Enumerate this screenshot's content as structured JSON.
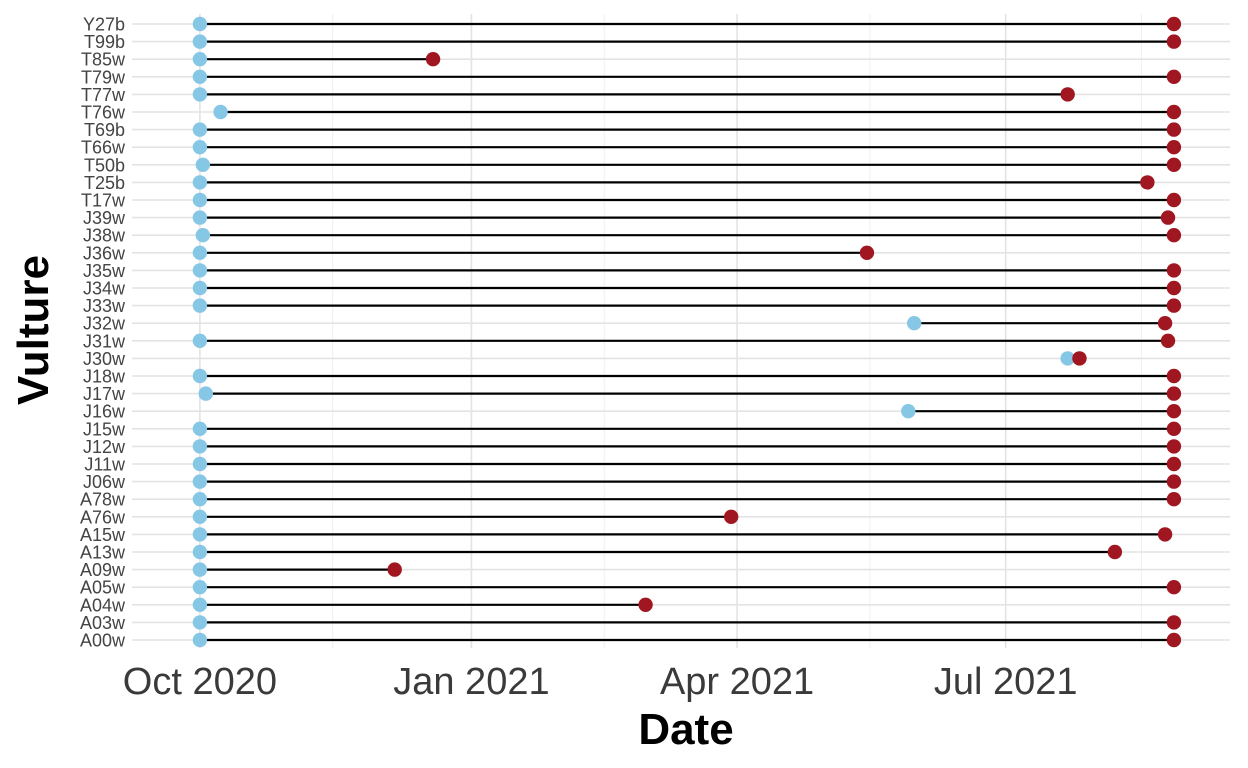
{
  "chart_data": {
    "type": "dumbbell",
    "xlabel": "Date",
    "ylabel": "Vulture",
    "x_range": [
      "2020-09-08",
      "2021-09-15"
    ],
    "x_ticks": [
      {
        "date": "2020-10-01",
        "label": "Oct 2020"
      },
      {
        "date": "2021-01-01",
        "label": "Jan 2021"
      },
      {
        "date": "2021-04-01",
        "label": "Apr 2021"
      },
      {
        "date": "2021-07-01",
        "label": "Jul 2021"
      }
    ],
    "x_minor_ticks": [
      "2020-11-15",
      "2021-02-15",
      "2021-05-16",
      "2021-08-16"
    ],
    "grid": true,
    "legend": "none",
    "colors": {
      "start": "#87c7e6",
      "end": "#a11721",
      "segment": "#000000"
    },
    "series": [
      {
        "vulture": "Y27b",
        "start": "2020-10-01",
        "end": "2021-08-27"
      },
      {
        "vulture": "T99b",
        "start": "2020-10-01",
        "end": "2021-08-27"
      },
      {
        "vulture": "T85w",
        "start": "2020-10-01",
        "end": "2020-12-19"
      },
      {
        "vulture": "T79w",
        "start": "2020-10-01",
        "end": "2021-08-27"
      },
      {
        "vulture": "T77w",
        "start": "2020-10-01",
        "end": "2021-07-22"
      },
      {
        "vulture": "T76w",
        "start": "2020-10-08",
        "end": "2021-08-27"
      },
      {
        "vulture": "T69b",
        "start": "2020-10-01",
        "end": "2021-08-27"
      },
      {
        "vulture": "T66w",
        "start": "2020-10-01",
        "end": "2021-08-27"
      },
      {
        "vulture": "T50b",
        "start": "2020-10-02",
        "end": "2021-08-27"
      },
      {
        "vulture": "T25b",
        "start": "2020-10-01",
        "end": "2021-08-18"
      },
      {
        "vulture": "T17w",
        "start": "2020-10-01",
        "end": "2021-08-27"
      },
      {
        "vulture": "J39w",
        "start": "2020-10-01",
        "end": "2021-08-25"
      },
      {
        "vulture": "J38w",
        "start": "2020-10-02",
        "end": "2021-08-27"
      },
      {
        "vulture": "J36w",
        "start": "2020-10-01",
        "end": "2021-05-15"
      },
      {
        "vulture": "J35w",
        "start": "2020-10-01",
        "end": "2021-08-27"
      },
      {
        "vulture": "J34w",
        "start": "2020-10-01",
        "end": "2021-08-27"
      },
      {
        "vulture": "J33w",
        "start": "2020-10-01",
        "end": "2021-08-27"
      },
      {
        "vulture": "J32w",
        "start": "2021-05-31",
        "end": "2021-08-24"
      },
      {
        "vulture": "J31w",
        "start": "2020-10-01",
        "end": "2021-08-25"
      },
      {
        "vulture": "J30w",
        "start": "2021-07-22",
        "end": "2021-07-26"
      },
      {
        "vulture": "J18w",
        "start": "2020-10-01",
        "end": "2021-08-27"
      },
      {
        "vulture": "J17w",
        "start": "2020-10-03",
        "end": "2021-08-27"
      },
      {
        "vulture": "J16w",
        "start": "2021-05-29",
        "end": "2021-08-27"
      },
      {
        "vulture": "J15w",
        "start": "2020-10-01",
        "end": "2021-08-27"
      },
      {
        "vulture": "J12w",
        "start": "2020-10-01",
        "end": "2021-08-27"
      },
      {
        "vulture": "J11w",
        "start": "2020-10-01",
        "end": "2021-08-27"
      },
      {
        "vulture": "J06w",
        "start": "2020-10-01",
        "end": "2021-08-27"
      },
      {
        "vulture": "A78w",
        "start": "2020-10-01",
        "end": "2021-08-27"
      },
      {
        "vulture": "A76w",
        "start": "2020-10-01",
        "end": "2021-03-30"
      },
      {
        "vulture": "A15w",
        "start": "2020-10-01",
        "end": "2021-08-24"
      },
      {
        "vulture": "A13w",
        "start": "2020-10-01",
        "end": "2021-08-07"
      },
      {
        "vulture": "A09w",
        "start": "2020-10-01",
        "end": "2020-12-06"
      },
      {
        "vulture": "A05w",
        "start": "2020-10-01",
        "end": "2021-08-27"
      },
      {
        "vulture": "A04w",
        "start": "2020-10-01",
        "end": "2021-03-01"
      },
      {
        "vulture": "A03w",
        "start": "2020-10-01",
        "end": "2021-08-27"
      },
      {
        "vulture": "A00w",
        "start": "2020-10-01",
        "end": "2021-08-27"
      }
    ]
  }
}
